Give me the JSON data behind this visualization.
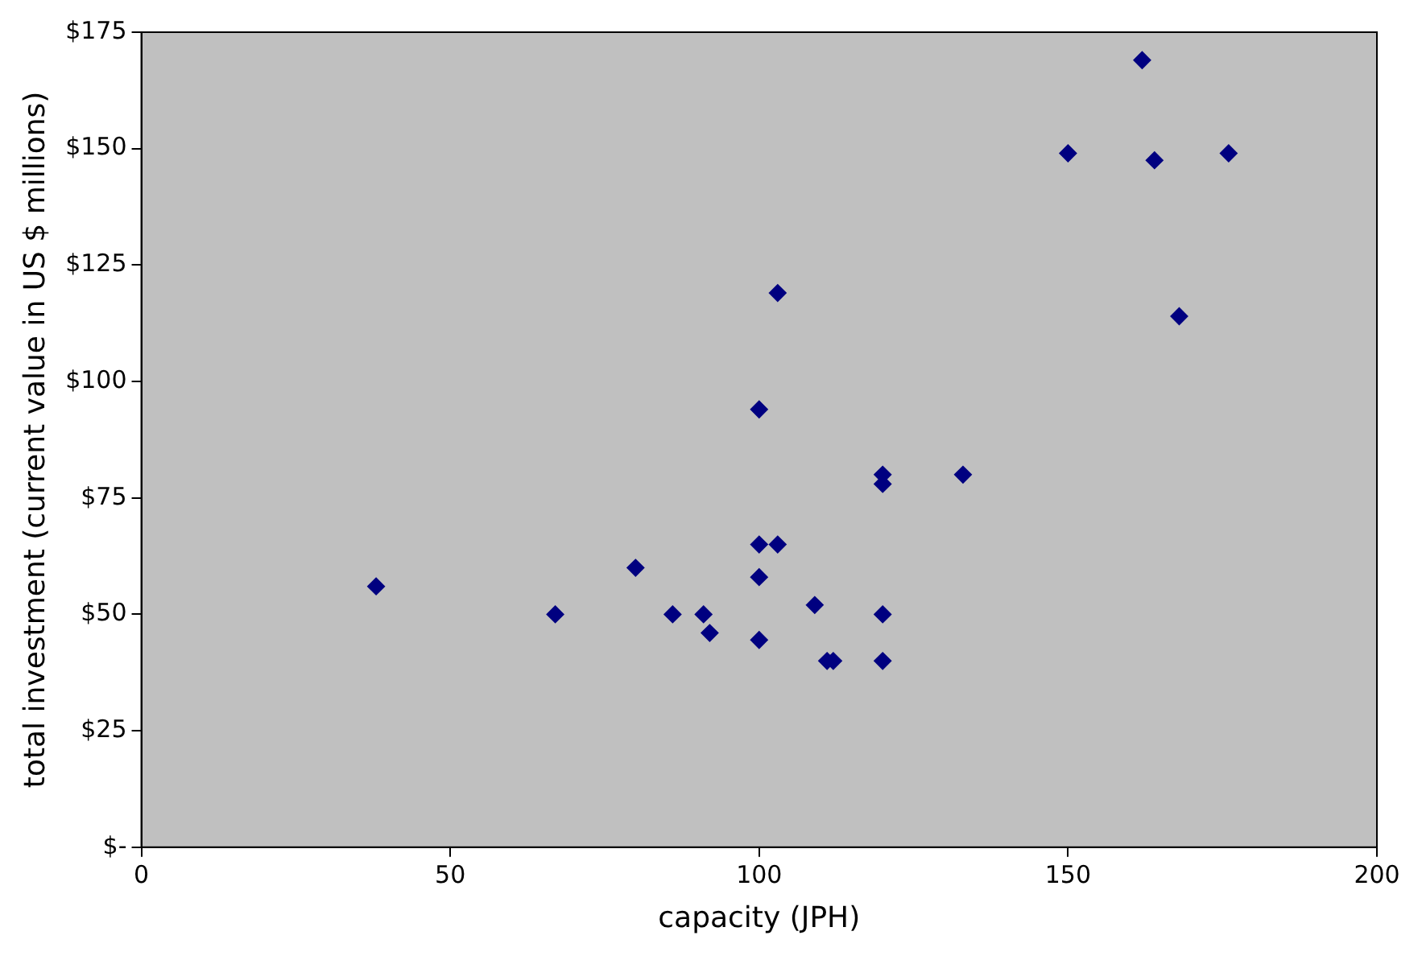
{
  "chart_data": {
    "type": "scatter",
    "xlabel": "capacity (JPH)",
    "ylabel": "total investment (current value in US $ millions)",
    "x": [
      38,
      67,
      80,
      86,
      91,
      92,
      100,
      100,
      100,
      103,
      100,
      103,
      109,
      111,
      112,
      120,
      120,
      120,
      120,
      133,
      150,
      162,
      164,
      176,
      168
    ],
    "series": [
      {
        "color": "#000080",
        "values": [
          56,
          50,
          60,
          50,
          50,
          46,
          44.5,
          58,
          65,
          65,
          94,
          119,
          52,
          40,
          40,
          40,
          50,
          80,
          78,
          80,
          149,
          169,
          147.5,
          149,
          114
        ]
      }
    ],
    "xlim": [
      0,
      200
    ],
    "xticks": [
      0,
      50,
      100,
      150,
      200
    ],
    "ylim": [
      0,
      175
    ],
    "yticks": [
      {
        "value": 0,
        "label": "$-"
      },
      {
        "value": 25,
        "label": "$25"
      },
      {
        "value": 50,
        "label": "$50"
      },
      {
        "value": 75,
        "label": "$75"
      },
      {
        "value": 100,
        "label": "$100"
      },
      {
        "value": 125,
        "label": "$125"
      },
      {
        "value": 150,
        "label": "$150"
      },
      {
        "value": 175,
        "label": "$175"
      }
    ],
    "grid": false,
    "legend": false,
    "marker": "diamond"
  }
}
